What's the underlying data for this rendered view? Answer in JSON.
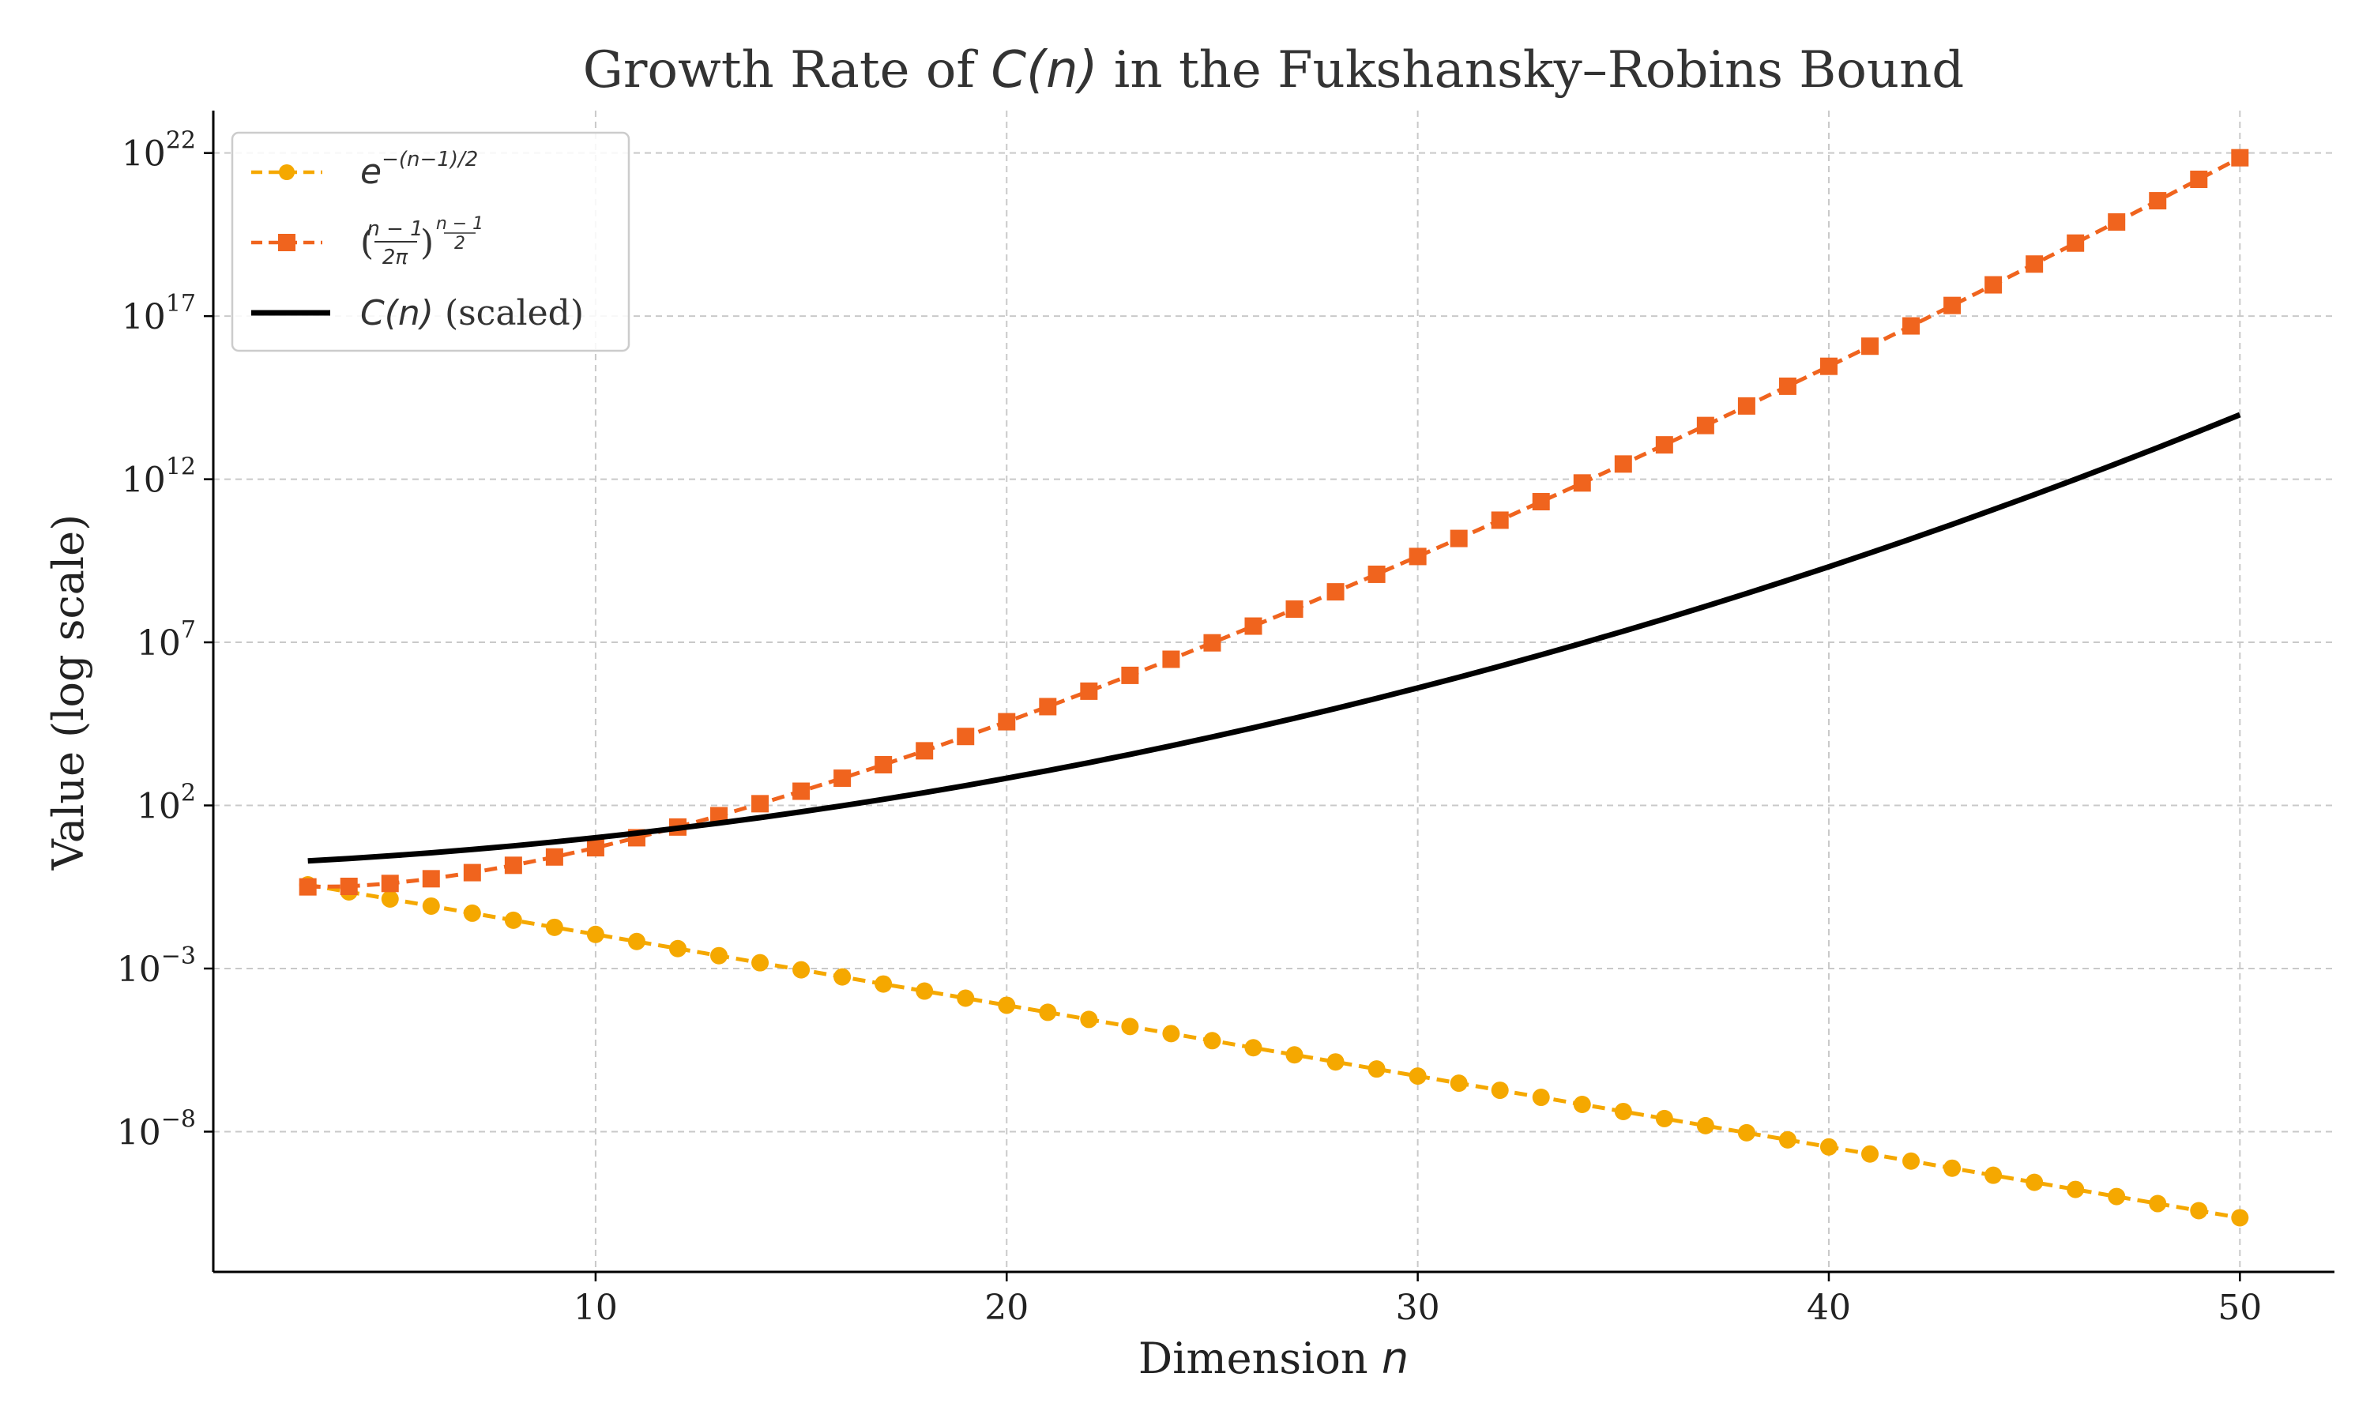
{
  "chart_data": {
    "type": "line",
    "title": "Growth Rate of C(n) in the Fukshansky–Robins Bound",
    "title_parts": {
      "prefix": "Growth Rate of ",
      "math": "C(n)",
      "suffix": " in the Fukshansky–Robins Bound"
    },
    "xlabel": "Dimension n",
    "xlabel_parts": {
      "text": "Dimension ",
      "math": "n"
    },
    "ylabel": "Value (log scale)",
    "yscale": "log",
    "xlim": [
      0.7,
      52.3
    ],
    "ylim_log10": [
      -12.3,
      23.3
    ],
    "x_ticks": [
      10,
      20,
      30,
      40,
      50
    ],
    "y_ticks_log10": [
      -8,
      -3,
      2,
      7,
      12,
      17,
      22
    ],
    "y_tick_labels": [
      "10^-8",
      "10^-3",
      "10^2",
      "10^7",
      "10^12",
      "10^17",
      "10^22"
    ],
    "grid": true,
    "legend_position": "top-left",
    "x": [
      3,
      4,
      5,
      6,
      7,
      8,
      9,
      10,
      11,
      12,
      13,
      14,
      15,
      16,
      17,
      18,
      19,
      20,
      21,
      22,
      23,
      24,
      25,
      26,
      27,
      28,
      29,
      30,
      31,
      32,
      33,
      34,
      35,
      36,
      37,
      38,
      39,
      40,
      41,
      42,
      43,
      44,
      45,
      46,
      47,
      48,
      49,
      50
    ],
    "series": [
      {
        "name": "e^{-(n-1)/2}",
        "color": "#f5a800",
        "marker": "circle",
        "linestyle": "dashed",
        "formula": "exp(-(n-1)/2)"
      },
      {
        "name": "((n-1)/(2π))^{(n-1)/2}",
        "color": "#f0641e",
        "marker": "square",
        "linestyle": "dashed",
        "formula": "((n-1)/(2*pi))^((n-1)/2)"
      },
      {
        "name": "C(n) (scaled)",
        "color": "#000000",
        "marker": "none",
        "linestyle": "solid",
        "formula": "scaled C(n)"
      }
    ],
    "legend": [
      {
        "label": "e^{-(n-1)/2}",
        "base": "e",
        "exp": "−(n−1)/2"
      },
      {
        "label": "((n-1)/(2π))^{(n-1)/2}",
        "num": "n − 1",
        "den": "2π",
        "exp": "n − 1",
        "exp_den": "2"
      },
      {
        "label": "C(n) (scaled)",
        "math": "C(n)",
        "suffix": " (scaled)"
      }
    ]
  }
}
